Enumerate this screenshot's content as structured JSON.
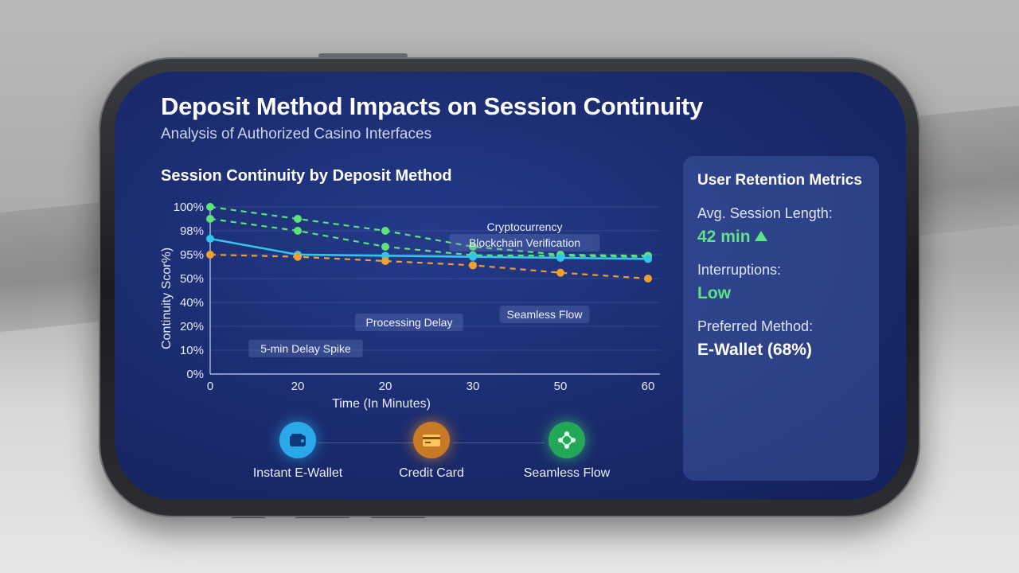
{
  "header": {
    "title": "Deposit Method Impacts on Session Continuity",
    "subtitle": "Analysis of Authorized Casino Interfaces"
  },
  "chart_data": {
    "type": "line",
    "title": "Session Continuity by Deposit Method",
    "xlabel": "Time (In Minutes)",
    "ylabel": "Continuity Scor%)",
    "x_tick_labels": [
      "0",
      "20",
      "20",
      "30",
      "50",
      "60"
    ],
    "y_tick_labels": [
      "0%",
      "10%",
      "20%",
      "40%",
      "50%",
      "95%",
      "98%",
      "100%"
    ],
    "grid": true,
    "series": [
      {
        "color": "#5ee27a",
        "style": "dashed",
        "values": [
          100,
          99,
          98,
          96,
          95,
          93
        ]
      },
      {
        "color": "#5ee27a",
        "style": "dashed",
        "values": [
          99,
          98,
          96,
          94,
          93,
          91
        ]
      },
      {
        "color": "#33c6ec",
        "style": "solid",
        "values": [
          97,
          95,
          93,
          91,
          89,
          87
        ]
      },
      {
        "color": "#f0a030",
        "style": "dashed",
        "values": [
          95,
          91,
          83,
          75,
          61,
          50
        ]
      }
    ],
    "annotations": [
      {
        "text": "Cryptocurrency",
        "boxed": false
      },
      {
        "text": "Blockchain Verification",
        "boxed": true
      },
      {
        "text": "Seamless Flow",
        "boxed": true
      },
      {
        "text": "Processing Delay",
        "boxed": true
      },
      {
        "text": "5-min Delay Spike",
        "boxed": true
      }
    ]
  },
  "footer": {
    "items": [
      {
        "label": "Instant E-Wallet",
        "icon": "wallet-icon",
        "color": "#2aa8e8"
      },
      {
        "label": "Credit Card",
        "icon": "credit-card-icon",
        "color": "#e8902a"
      },
      {
        "label": "Seamless Flow",
        "icon": "network-icon",
        "color": "#3fcf70"
      }
    ]
  },
  "metrics": {
    "title": "User Retention Metrics",
    "session_label": "Avg. Session Length:",
    "session_value": "42 min",
    "session_trend_icon": "triangle-up-icon",
    "interruptions_label": "Interruptions:",
    "interruptions_value": "Low",
    "method_label": "Preferred Method:",
    "method_value": "E-Wallet (68%)"
  }
}
